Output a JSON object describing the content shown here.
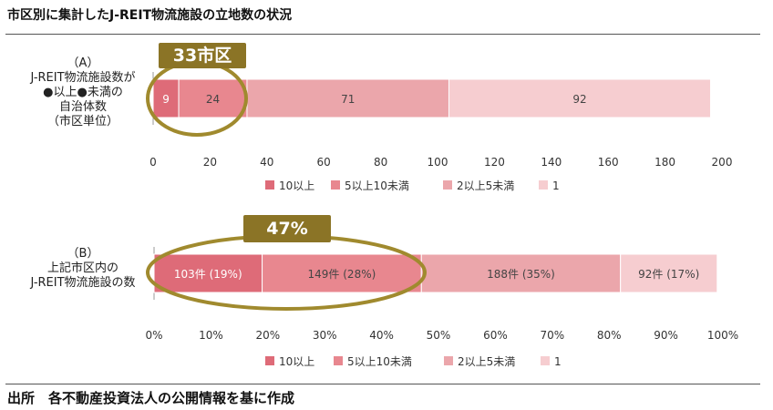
{
  "title": "市区別に集計したJ-REIT物流施設の立地数の状況",
  "source": "出所　各不動産投資法人の公開情報を基に作成",
  "colors": {
    "series": [
      "#de6b78",
      "#e8878f",
      "#eba6ab",
      "#f6cdd0"
    ],
    "highlight": "#a08a2e",
    "badge": "#8b7426",
    "axis": "#999999",
    "label_dark": "#444444",
    "label_light": "#ffffff"
  },
  "chart_data": [
    {
      "type": "bar",
      "orientation": "horizontal",
      "stacked": true,
      "label_lines": [
        "（A）",
        "J-REIT物流施設数が",
        "●以上●未満の",
        "自治体数",
        "（市区単位）"
      ],
      "categories": [
        "（A）"
      ],
      "series": [
        {
          "name": "10以上",
          "values": [
            9
          ],
          "label": "9"
        },
        {
          "name": "5以上10未満",
          "values": [
            24
          ],
          "label": "24"
        },
        {
          "name": "2以上5未満",
          "values": [
            71
          ],
          "label": "71"
        },
        {
          "name": "1",
          "values": [
            92
          ],
          "label": "92"
        }
      ],
      "xlim": [
        0,
        200
      ],
      "xticks": [
        0,
        20,
        40,
        60,
        80,
        100,
        120,
        140,
        160,
        180,
        200
      ],
      "tick_labels": [
        "0",
        "20",
        "40",
        "60",
        "80",
        "100",
        "120",
        "140",
        "160",
        "180",
        "200"
      ],
      "legend": [
        "10以上",
        "5以上10未満",
        "2以上5未満",
        "1"
      ],
      "legend_position": "bottom",
      "annotation": {
        "text": "33市区",
        "covers_series": [
          0,
          1
        ]
      }
    },
    {
      "type": "bar",
      "orientation": "horizontal",
      "stacked": true,
      "label_lines": [
        "（B）",
        "上記市区内の",
        "J-REIT物流施設の数"
      ],
      "categories": [
        "（B）"
      ],
      "series": [
        {
          "name": "10以上",
          "values": [
            19
          ],
          "label": "103件 (19%)"
        },
        {
          "name": "5以上10未満",
          "values": [
            28
          ],
          "label": "149件 (28%)"
        },
        {
          "name": "2以上5未満",
          "values": [
            35
          ],
          "label": "188件 (35%)"
        },
        {
          "name": "1",
          "values": [
            17
          ],
          "label": "92件 (17%)"
        }
      ],
      "xlim": [
        0,
        100
      ],
      "xticks": [
        0,
        10,
        20,
        30,
        40,
        50,
        60,
        70,
        80,
        90,
        100
      ],
      "tick_labels": [
        "0%",
        "10%",
        "20%",
        "30%",
        "40%",
        "50%",
        "60%",
        "70%",
        "80%",
        "90%",
        "100%"
      ],
      "legend": [
        "10以上",
        "5以上10未満",
        "2以上5未満",
        "1"
      ],
      "legend_position": "bottom",
      "annotation": {
        "text": "47%",
        "covers_series": [
          0,
          1
        ]
      }
    }
  ]
}
